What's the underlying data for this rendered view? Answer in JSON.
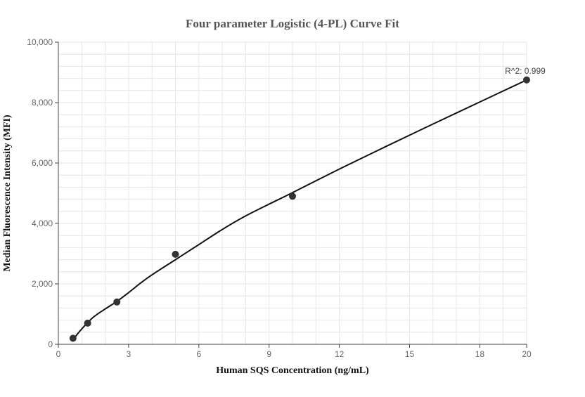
{
  "chart_data": {
    "type": "scatter",
    "title": "Four parameter Logistic (4-PL) Curve Fit",
    "xlabel": "Human SQS Concentration (ng/mL)",
    "ylabel": "Median Fluorescence Intensity (MFI)",
    "xlim": [
      0,
      20
    ],
    "ylim": [
      0,
      10000
    ],
    "x_ticks": [
      0,
      3,
      6,
      9,
      12,
      15,
      18,
      20
    ],
    "x_tick_labels": [
      "0",
      "3",
      "6",
      "9",
      "12",
      "15",
      "18",
      "20"
    ],
    "y_ticks": [
      0,
      2000,
      4000,
      6000,
      8000,
      10000
    ],
    "y_tick_labels": [
      "0",
      "2,000",
      "4,000",
      "6,000",
      "8,000",
      "10,000"
    ],
    "grid": true,
    "points": [
      {
        "x": 0.625,
        "y": 200
      },
      {
        "x": 1.25,
        "y": 700
      },
      {
        "x": 2.5,
        "y": 1400
      },
      {
        "x": 5,
        "y": 2980
      },
      {
        "x": 10,
        "y": 4900
      },
      {
        "x": 20,
        "y": 8750
      }
    ],
    "curve": {
      "x": [
        0.625,
        1,
        1.5,
        2,
        2.5,
        3,
        3.5,
        4,
        5,
        6,
        7,
        8,
        9,
        10,
        12,
        14,
        16,
        18,
        20
      ],
      "y": [
        150,
        510,
        900,
        1170,
        1420,
        1710,
        2020,
        2300,
        2800,
        3300,
        3800,
        4250,
        4640,
        5020,
        5800,
        6550,
        7290,
        8020,
        8750
      ]
    },
    "annotation": "R^2: 0.999",
    "colors": {
      "marker": "#333333",
      "curve": "#111111",
      "grid": "#e6e6e6",
      "axis": "#444444"
    }
  }
}
